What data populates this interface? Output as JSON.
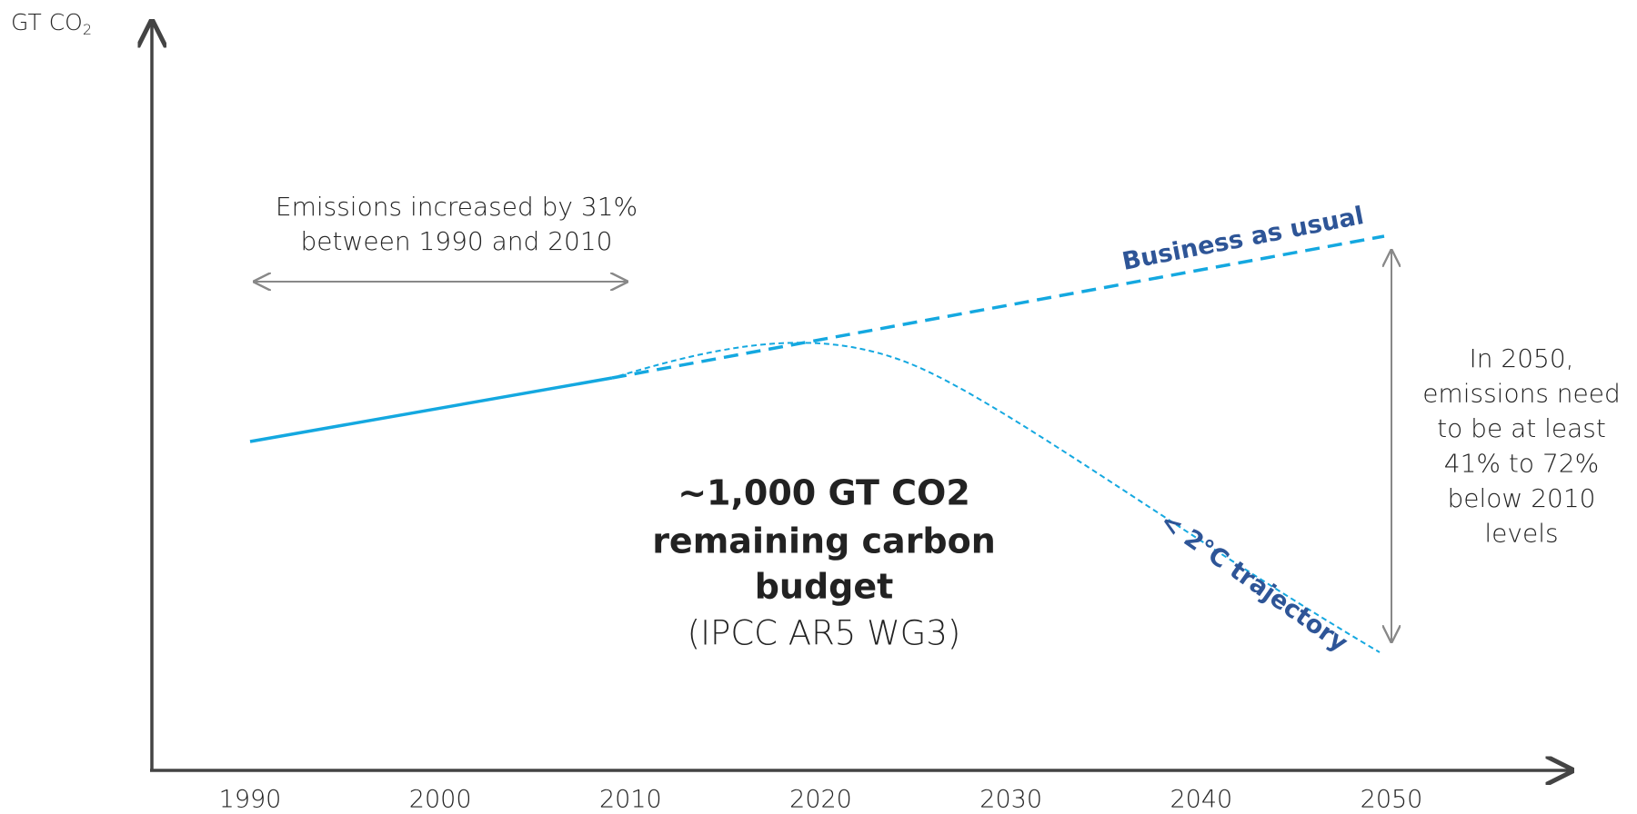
{
  "chart_data": {
    "type": "line",
    "y_label": {
      "main": "GT CO",
      "sub": "2"
    },
    "xticks": [
      1990,
      2000,
      2010,
      2020,
      2030,
      2040,
      2050
    ],
    "annotations": {
      "increase": [
        "Emissions increased by 31%",
        "between 1990 and 2010"
      ],
      "business": "Business as usual",
      "trajectory": "< 2°C trajectory",
      "budget_bold": [
        "~1,000 GT CO2",
        "remaining carbon",
        "budget"
      ],
      "budget_source": "(IPCC AR5 WG3)",
      "need": [
        "In 2050,",
        "emissions need",
        "to be at least",
        "41% to 72%",
        "below 2010",
        "levels"
      ]
    }
  }
}
